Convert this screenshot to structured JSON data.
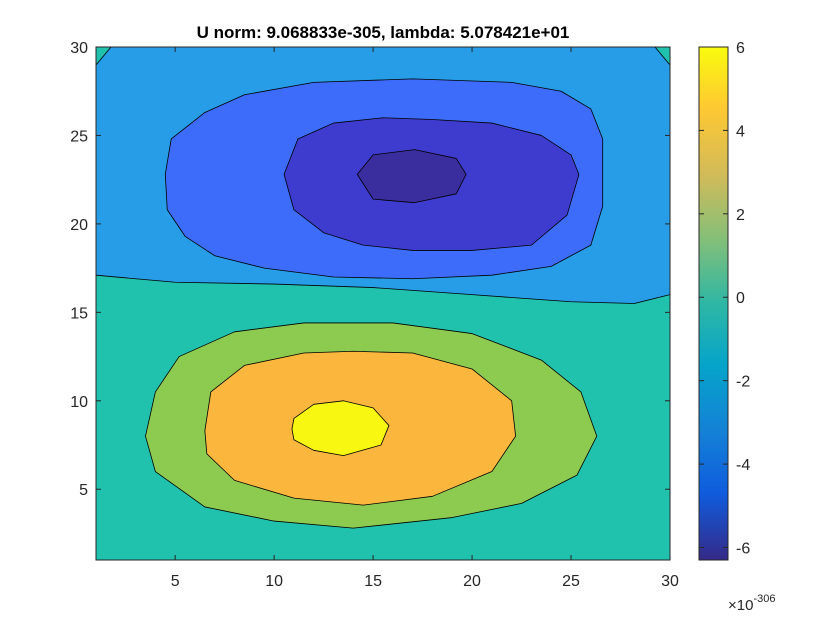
{
  "chart_data": {
    "type": "contour",
    "title": "U norm: 9.068833e-305, lambda: 5.078421e+01",
    "xlim": [
      1,
      30
    ],
    "ylim": [
      1,
      30
    ],
    "xticks": [
      5,
      10,
      15,
      20,
      25,
      30
    ],
    "yticks": [
      5,
      10,
      15,
      20,
      25,
      30
    ],
    "grid": false,
    "colorbar": {
      "position": "right",
      "range": [
        -6.3,
        6
      ],
      "ticks": [
        -6,
        -4,
        -2,
        0,
        2,
        4,
        6
      ],
      "multiplier_base": "×10",
      "multiplier_exponent": "-306",
      "colormap": "parula"
    },
    "levels": [
      {
        "level": -5.5,
        "color": "#3a2d9e",
        "polygon": [
          [
            14.2,
            22.8
          ],
          [
            15.0,
            23.9
          ],
          [
            17.1,
            24.2
          ],
          [
            19.2,
            23.7
          ],
          [
            19.7,
            22.8
          ],
          [
            19.2,
            21.7
          ],
          [
            17.1,
            21.2
          ],
          [
            15.0,
            21.4
          ]
        ]
      },
      {
        "level": -4.5,
        "color": "#3e3bcf",
        "polygon": [
          [
            10.5,
            22.8
          ],
          [
            11.2,
            24.8
          ],
          [
            13.0,
            25.7
          ],
          [
            15.5,
            26.0
          ],
          [
            18.0,
            25.9
          ],
          [
            21.0,
            25.7
          ],
          [
            23.5,
            25.0
          ],
          [
            25.0,
            23.9
          ],
          [
            25.4,
            22.8
          ],
          [
            24.8,
            20.5
          ],
          [
            23.0,
            18.8
          ],
          [
            20.0,
            18.5
          ],
          [
            17.0,
            18.5
          ],
          [
            14.5,
            18.8
          ],
          [
            12.5,
            19.5
          ],
          [
            11.0,
            20.8
          ]
        ]
      },
      {
        "level": -3.0,
        "color": "#3d6cfa",
        "polygon": [
          [
            4.5,
            22.8
          ],
          [
            4.8,
            24.8
          ],
          [
            6.5,
            26.3
          ],
          [
            8.5,
            27.3
          ],
          [
            12.0,
            28.0
          ],
          [
            17.0,
            28.2
          ],
          [
            22.0,
            28.0
          ],
          [
            24.5,
            27.5
          ],
          [
            26.0,
            26.5
          ],
          [
            26.6,
            24.8
          ],
          [
            26.6,
            21.0
          ],
          [
            26.0,
            18.8
          ],
          [
            24.0,
            17.6
          ],
          [
            21.0,
            17.1
          ],
          [
            17.0,
            16.9
          ],
          [
            13.0,
            17.0
          ],
          [
            9.5,
            17.5
          ],
          [
            7.0,
            18.2
          ],
          [
            5.5,
            19.3
          ],
          [
            4.6,
            20.8
          ]
        ]
      },
      {
        "level": 3.0,
        "color": "#8dca50",
        "polygon": [
          [
            3.5,
            8.0
          ],
          [
            4.0,
            10.5
          ],
          [
            5.2,
            12.5
          ],
          [
            8.0,
            13.9
          ],
          [
            11.5,
            14.4
          ],
          [
            16.0,
            14.4
          ],
          [
            20.0,
            13.8
          ],
          [
            23.5,
            12.3
          ],
          [
            25.5,
            10.5
          ],
          [
            26.3,
            8.0
          ],
          [
            25.3,
            5.8
          ],
          [
            22.5,
            4.2
          ],
          [
            19.0,
            3.4
          ],
          [
            14.0,
            2.8
          ],
          [
            10.0,
            3.2
          ],
          [
            6.5,
            4.0
          ],
          [
            4.0,
            6.0
          ]
        ]
      },
      {
        "level": 4.5,
        "color": "#fbb63e",
        "polygon": [
          [
            6.5,
            8.3
          ],
          [
            6.8,
            10.5
          ],
          [
            8.5,
            12.0
          ],
          [
            11.5,
            12.7
          ],
          [
            14.0,
            12.8
          ],
          [
            17.0,
            12.7
          ],
          [
            20.0,
            11.8
          ],
          [
            22.0,
            10.0
          ],
          [
            22.2,
            8.0
          ],
          [
            21.0,
            6.0
          ],
          [
            18.0,
            4.6
          ],
          [
            14.5,
            4.1
          ],
          [
            11.0,
            4.5
          ],
          [
            8.0,
            5.5
          ],
          [
            6.6,
            7.0
          ]
        ]
      },
      {
        "level": 5.8,
        "color": "#f8f712",
        "polygon": [
          [
            10.9,
            8.4
          ],
          [
            11.0,
            9.0
          ],
          [
            12.0,
            9.8
          ],
          [
            13.5,
            10.0
          ],
          [
            15.0,
            9.6
          ],
          [
            15.8,
            8.6
          ],
          [
            15.4,
            7.5
          ],
          [
            13.5,
            6.9
          ],
          [
            12.0,
            7.2
          ],
          [
            11.0,
            7.8
          ]
        ]
      }
    ]
  }
}
